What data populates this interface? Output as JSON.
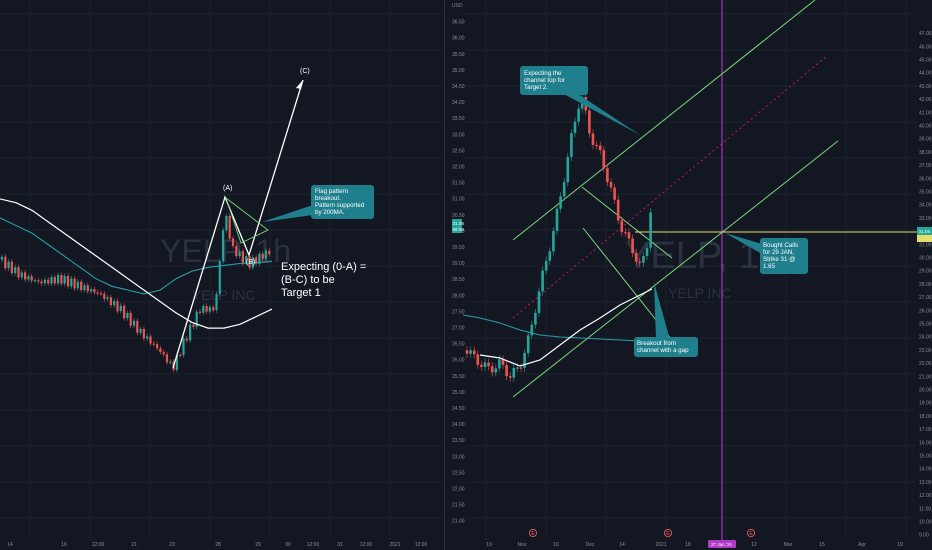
{
  "left_panel": {
    "watermark": "YELP, 1h",
    "watermark_sub": "YELP INC",
    "x_ticks": [
      "14",
      "16",
      "12:00",
      "21",
      "23",
      "28",
      "29",
      "30",
      "12:00",
      "31",
      "12:00",
      "2021",
      "12:00"
    ],
    "wave_labels": {
      "a": "(A)",
      "b": "(B)",
      "c": "(C)"
    },
    "note_flag": [
      "Flag pattern",
      "breakout.",
      "Pattern supported",
      "by 200MA."
    ],
    "note_target": [
      "Expecting (0-A) =",
      "(B-C) to be",
      "Target 1"
    ]
  },
  "right_panel": {
    "watermark": "YELP, 1D",
    "watermark_sub": "YELP INC",
    "x_ticks": [
      "19",
      "Nov",
      "16",
      "Dec",
      "14",
      "2021",
      "18",
      "27 Jan '21",
      "12",
      "Mar",
      "15",
      "Apr",
      "19"
    ],
    "note_channel": [
      "Expecting the",
      "channel top for",
      "Target 2."
    ],
    "note_breakout": [
      "Breakout from",
      "channel with a gap"
    ],
    "note_calls": [
      "Bought Calls",
      "for 29 JAN,",
      "Strike 31 @",
      "1.65"
    ],
    "price_tags": {
      "current": "31.05",
      "current_sub": "09:06",
      "yellow": "31.05"
    },
    "event_marks": [
      "E",
      "E",
      "E"
    ],
    "unit": "USD"
  },
  "colors": {
    "background": "#131722",
    "bull": "#26a69a",
    "bear": "#ef5350",
    "ma200": "#2a9da8",
    "ma_white": "#ffffff",
    "channel": "#7ed67e",
    "midline": "#c2185b",
    "callout": "#1f7f8c",
    "yellow_line": "#e6de6c",
    "vline": "#b13bc6"
  },
  "chart_data": [
    {
      "type": "candlestick",
      "symbol": "YELP",
      "interval": "1h",
      "x_ticks": [
        "14",
        "16",
        "12:00",
        "21",
        "23",
        "28",
        "29",
        "30",
        "12:00",
        "31",
        "12:00",
        "2021",
        "12:00"
      ],
      "pivots": {
        "0": 27.05,
        "A": 31.55,
        "B": 29.6,
        "C": 36.0
      },
      "series": [
        {
          "name": "MA 200",
          "values": [
            31.0,
            30.8,
            30.6,
            30.3,
            30.0,
            29.7,
            29.4,
            29.2,
            29.1,
            29.0,
            29.1,
            29.4,
            29.6,
            29.7,
            29.75,
            29.8,
            29.82,
            29.85
          ]
        },
        {
          "name": "MA 50",
          "values": [
            31.5,
            31.4,
            31.2,
            30.9,
            30.6,
            30.3,
            30.0,
            29.7,
            29.4,
            29.1,
            28.8,
            28.5,
            28.25,
            28.1,
            28.1,
            28.2,
            28.4,
            28.6
          ]
        }
      ]
    },
    {
      "type": "candlestick",
      "symbol": "YELP",
      "interval": "1D",
      "unit": "USD",
      "ylim": [
        21.0,
        37.0
      ],
      "y_ticks": [
        "21.00",
        "21.50",
        "22.00",
        "22.50",
        "23.00",
        "23.50",
        "24.00",
        "24.50",
        "25.00",
        "25.50",
        "26.00",
        "26.50",
        "27.00",
        "27.50",
        "28.00",
        "28.50",
        "29.00",
        "29.50",
        "30.00",
        "30.50",
        "31.00",
        "31.50",
        "32.00",
        "32.50",
        "33.00",
        "33.50",
        "34.00",
        "34.50",
        "35.00",
        "35.50",
        "36.00",
        "36.50",
        "37.00"
      ],
      "y_ticks_outer": [
        "9.00",
        "10.00",
        "11.00",
        "12.00",
        "13.00",
        "14.00",
        "15.00",
        "16.00",
        "17.00",
        "18.00",
        "19.00",
        "20.00",
        "21.00",
        "22.00",
        "23.00",
        "24.00",
        "25.00",
        "26.00",
        "27.00",
        "28.00",
        "29.00",
        "30.00",
        "31.00",
        "32.00",
        "33.00",
        "34.00",
        "35.00",
        "36.00",
        "37.00",
        "38.00",
        "39.00",
        "40.00",
        "41.00",
        "42.00",
        "43.00",
        "44.00",
        "45.00",
        "46.00",
        "47.00"
      ],
      "current_price": 31.05,
      "strike": 31.0,
      "target_date": "27 Jan '21"
    }
  ]
}
